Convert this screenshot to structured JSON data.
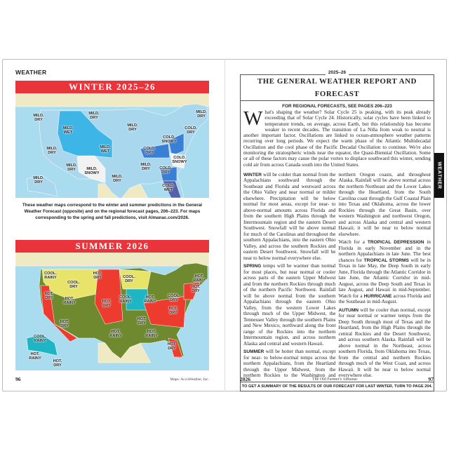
{
  "left_page": {
    "section": "WEATHER",
    "winter_map": {
      "title": "WINTER 2025–26",
      "labels": [
        "MILD. DRY",
        "MILD. WET",
        "MILD. DRY",
        "MILD. DRY",
        "MILD. DRY",
        "MILD. DRY",
        "MILD. WET",
        "COLD. DRY",
        "COLD. SNOWY",
        "COLD. DRY",
        "COLD. SNOWY",
        "MILD. DRY",
        "MILD. SNOWY",
        "MILD. DRY",
        "MILD. DRY",
        "COLD. DRY",
        "MILD. DRY",
        "COLD. WET"
      ]
    },
    "caption": "These weather maps correspond to the winter and summer predictions in the General Weather Forecast (opposite) and on the regional forecast pages, 206–223. For maps corresponding to the spring and fall predictions, visit Almanac.com/2026.",
    "summer_map": {
      "title": "SUMMER 2026",
      "labels": [
        "COOL. RAINY",
        "HOT. DRY",
        "COOL. DRY",
        "HOT. RAINY",
        "COOL. DRY",
        "HOT. DRY",
        "HOT. DRY",
        "HOT. RAINY",
        "COOL. RAINY",
        "HOT. RAINY",
        "COOL. DRY",
        "HOT. DRY",
        "HOT. DRY",
        "HOT. DRY",
        "HOT. DRY",
        "HOT. RAINY",
        "HOT. RAINY",
        "HOT. DRY",
        "COOL. RAINY",
        "HOT. RAINY",
        "HOT. DRY"
      ]
    },
    "colors": {
      "mild": "#a9d8ee",
      "wet": "#3db5e6",
      "snowy": "#f2f2f2",
      "cold": "#3a7fd6",
      "cold_wet": "#5460a8",
      "hot": "#ee3b30",
      "cool_dry": "#e8e46a",
      "cool_rainy": "#1eb5c4",
      "hot_rainy": "#6f8a2e",
      "land": "#efe9c4",
      "water": "#a9dcef"
    },
    "page_number": "96",
    "credit": "Maps: AccuWeather, Inc."
  },
  "right_page": {
    "year": "2025–26",
    "title": "THE GENERAL WEATHER REPORT AND FORECAST",
    "subtitle": "FOR REGIONAL FORECASTS, SEE PAGES 206–223",
    "drop_cap": "W",
    "intro": "hat's shaping the weather? Solar Cycle 25 is peaking, with its peak already exceeding that of Solar Cycle 24. Historically, solar cycles have been linked to temperature trends, on average, across Earth, but this relationship has become weaker in recent decades. The transition of La Niña from weak to neutral is another important factor. Oscillations are linked to ocean-atmosphere weather patterns recurring over long periods. We expect the warm phase of the Atlantic Multidecadal Oscillation and the cool phase of the Pacific Decadal Oscillation to continue. We're also monitoring the stratospheric winds near the equator, the Quasi-Biennial Oscillation. Some or all of these factors may cause the polar vortex to displace southward this winter, sending cold air from across Canada south into the United States.",
    "winter": {
      "key": "WINTER",
      "text": " will be colder than normal from the Appalachians southward through the Southeast and Florida and westward across the Ohio Valley and near normal or milder elsewhere. Precipitation will be below normal for most areas, except for near- to above-normal amounts across Florida and from the southern High Plains through the Intermountain region and the eastern Desert Southwest. Snowfall will be above normal for much of the Carolinas and throughout the southern Appalachians, into the eastern Ohio Valley, and across the southern Rockies and eastern Desert Southwest. Snowfall will be near to below normal everywhere else."
    },
    "spring": {
      "key": "SPRING",
      "text": " temps will be warmer than normal for most places, but near normal or cooler across parts of the eastern Upper Midwest and from the northern Rockies through much of the northern Pacific Northwest. Rainfall will be above normal from the southern Appalachians through the eastern Ohio Valley, from the western Lower Lakes through much of the Upper Midwest, the Tennessee Valley through the southern Plains and New Mexico, northward along the front range of the Rockies into the northern Intermountain region, and across northern Alaska and central and western Hawaii."
    },
    "summer": {
      "key": "SUMMER",
      "text": " will be hotter than normal, except for near- to below-normal temps across the northern Appalachians, from the Heartland through the Upper Midwest, from the northern Rockies to the Washington and northern Oregon coasts, and throughout Alaska. Rainfall will be above normal across the northern Northeast and the Lower Lakes through the Heartland, from the South Carolina coast through the Gulf Coastal Plain into Texas and Oklahoma, across the lower Rockies through the Great Basin, over western Washington and northwest Oregon, and across Alaska and central and western Hawaii; it will be near to below normal elsewhere."
    },
    "tropical": {
      "pre": "Watch for a ",
      "key1": "TROPICAL DEPRESSION",
      "mid1": " in Florida in early November and in the northern Appalachians in late June. The best chances for ",
      "key2": "TROPICAL STORMS",
      "mid2": " will be in Texas in late May, the Deep South in early June, Florida through the Atlantic Corridor in late June, the Atlantic Corridor in mid-August, across the Deep South and Texas in late August, and Hawaii in mid-September. Watch for a ",
      "key3": "HURRICANE",
      "post": " across Florida and the Southeast in mid-August."
    },
    "autumn": {
      "key": "AUTUMN",
      "text": " will be cooler than normal, except for near normal or warmer temps from the Deep South through most of Texas and the Heartland, from the High Plains through the central Rockies and the Desert Southwest, and across southern Alaska. Rainfall will be above normal in the Northeast, across southern Florida, from Oklahoma into Texas, from the central and northern Rockies through much of the West Coast, and across Hawaii. It will be near to below normal everywhere else."
    },
    "bottom_note": "TO GET A SUMMARY OF THE RESULTS OF OUR FORECAST FOR LAST WINTER, TURN TO PAGE 204.",
    "side_tab": "WEATHER",
    "footer_year": "2026",
    "footer_title": "The Old Farmer's Almanac",
    "page_number": "97"
  }
}
